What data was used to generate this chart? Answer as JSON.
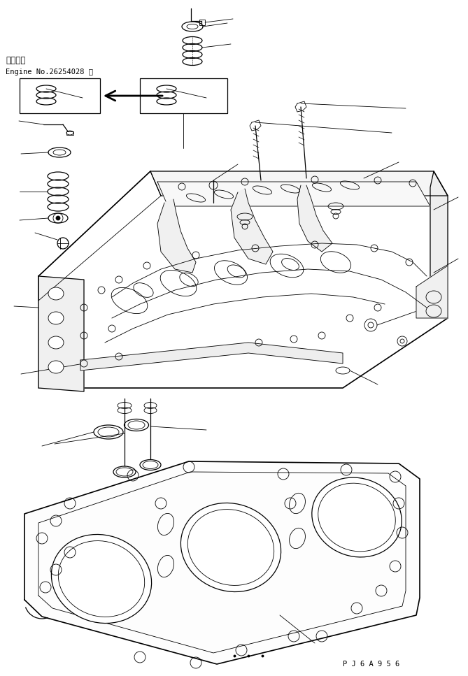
{
  "bg_color": "#ffffff",
  "line_color": "#000000",
  "fig_width": 6.69,
  "fig_height": 9.67,
  "dpi": 100,
  "text_line1": "適用号機",
  "text_line2": "Engine No.26254028 ～",
  "bottom_code": "P J 6 A 9 5 6"
}
